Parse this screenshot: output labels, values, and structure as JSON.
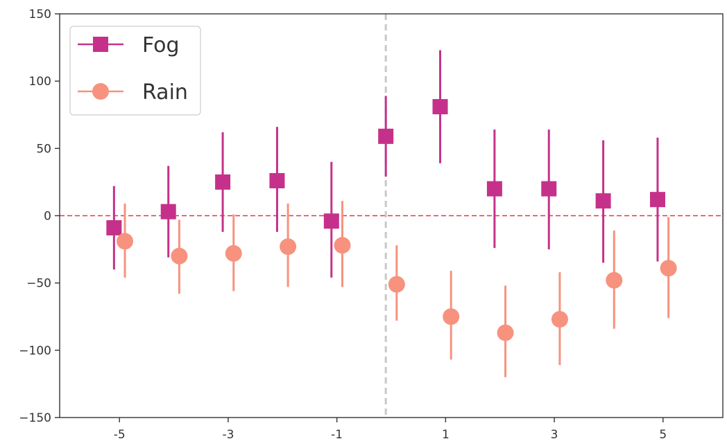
{
  "chart_data": {
    "type": "scatter",
    "title": "",
    "xlabel": "",
    "ylabel": "",
    "xlim": [
      -6.1,
      6.1
    ],
    "ylim": [
      -150,
      150
    ],
    "xticks": [
      -5,
      -3,
      -1,
      1,
      3,
      5
    ],
    "xtick_labels": [
      "-5",
      "-3",
      "-1",
      "1",
      "3",
      "5"
    ],
    "yticks": [
      -150,
      -100,
      -50,
      0,
      50,
      100,
      150
    ],
    "ytick_labels": [
      "−150",
      "−100",
      "−50",
      "0",
      "50",
      "100",
      "150"
    ],
    "grid": false,
    "legend_position": "top-left",
    "reference_lines": [
      {
        "orientation": "horizontal",
        "value": 0,
        "color": "#e8304a",
        "style": "dashed"
      },
      {
        "orientation": "vertical",
        "value": -0.1,
        "color": "#c8c8c8",
        "style": "dashed"
      }
    ],
    "series": [
      {
        "name": "Fog",
        "marker": "square",
        "color": "#c5318a",
        "x": [
          -5.1,
          -4.1,
          -3.1,
          -2.1,
          -1.1,
          -0.1,
          0.9,
          1.9,
          2.9,
          3.9,
          4.9
        ],
        "y": [
          -9,
          3,
          25,
          26,
          -4,
          59,
          81,
          20,
          20,
          11,
          12
        ],
        "err_low": [
          -40,
          -31,
          -12,
          -12,
          -46,
          29,
          39,
          -24,
          -25,
          -35,
          -34
        ],
        "err_high": [
          22,
          37,
          62,
          66,
          40,
          89,
          123,
          64,
          64,
          56,
          58
        ]
      },
      {
        "name": "Rain",
        "marker": "circle",
        "color": "#f7927e",
        "x": [
          -4.9,
          -3.9,
          -2.9,
          -1.9,
          -0.9,
          0.1,
          1.1,
          2.1,
          3.1,
          4.1,
          5.1
        ],
        "y": [
          -19,
          -30,
          -28,
          -23,
          -22,
          -51,
          -75,
          -87,
          -77,
          -48,
          -39
        ],
        "err_low": [
          -46,
          -58,
          -56,
          -53,
          -53,
          -78,
          -107,
          -120,
          -111,
          -84,
          -76
        ],
        "err_high": [
          9,
          -3,
          1,
          9,
          11,
          -22,
          -41,
          -52,
          -42,
          -11,
          -1
        ]
      }
    ]
  }
}
